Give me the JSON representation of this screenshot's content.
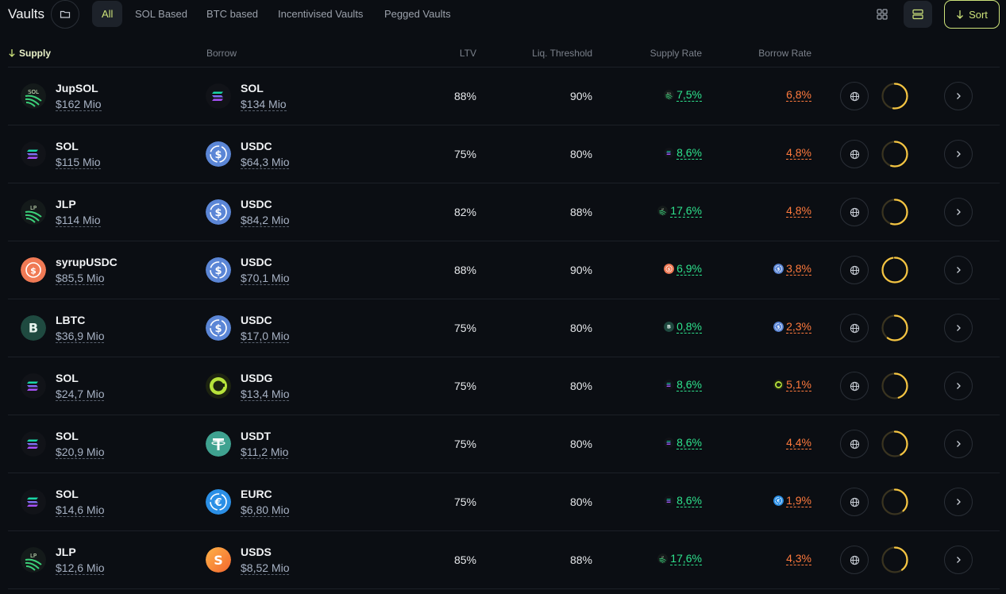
{
  "header": {
    "title": "Vaults",
    "tabs": [
      {
        "label": "All",
        "active": true
      },
      {
        "label": "SOL Based",
        "active": false
      },
      {
        "label": "BTC based",
        "active": false
      },
      {
        "label": "Incentivised Vaults",
        "active": false
      },
      {
        "label": "Pegged Vaults",
        "active": false
      }
    ],
    "sort_label": "Sort"
  },
  "columns": {
    "supply": "Supply",
    "borrow": "Borrow",
    "ltv": "LTV",
    "liq": "Liq. Threshold",
    "supply_rate": "Supply Rate",
    "borrow_rate": "Borrow Rate"
  },
  "colors": {
    "accent": "#cde37a",
    "supply_rate": "#2ee28d",
    "borrow_rate": "#ff7a3d",
    "gauge": "#f5c542"
  },
  "rows": [
    {
      "supply": {
        "name": "JupSOL",
        "amount": "$162 Mio",
        "icon": "jupsol"
      },
      "borrow": {
        "name": "SOL",
        "amount": "$134 Mio",
        "icon": "sol"
      },
      "ltv": "88%",
      "liq": "90%",
      "supply_rate": {
        "value": "7,5%",
        "icon": "jupsol"
      },
      "borrow_rate": {
        "value": "6,8%",
        "icon": ""
      },
      "utilization": 0.52
    },
    {
      "supply": {
        "name": "SOL",
        "amount": "$115 Mio",
        "icon": "sol"
      },
      "borrow": {
        "name": "USDC",
        "amount": "$64,3 Mio",
        "icon": "usdc"
      },
      "ltv": "75%",
      "liq": "80%",
      "supply_rate": {
        "value": "8,6%",
        "icon": "sol"
      },
      "borrow_rate": {
        "value": "4,8%",
        "icon": ""
      },
      "utilization": 0.55
    },
    {
      "supply": {
        "name": "JLP",
        "amount": "$114 Mio",
        "icon": "jlp"
      },
      "borrow": {
        "name": "USDC",
        "amount": "$84,2 Mio",
        "icon": "usdc"
      },
      "ltv": "82%",
      "liq": "88%",
      "supply_rate": {
        "value": "17,6%",
        "icon": "jlp"
      },
      "borrow_rate": {
        "value": "4,8%",
        "icon": ""
      },
      "utilization": 0.55
    },
    {
      "supply": {
        "name": "syrupUSDC",
        "amount": "$85,5 Mio",
        "icon": "syrup"
      },
      "borrow": {
        "name": "USDC",
        "amount": "$70,1 Mio",
        "icon": "usdc"
      },
      "ltv": "88%",
      "liq": "90%",
      "supply_rate": {
        "value": "6,9%",
        "icon": "syrup"
      },
      "borrow_rate": {
        "value": "3,8%",
        "icon": "usdc"
      },
      "utilization": 0.97
    },
    {
      "supply": {
        "name": "LBTC",
        "amount": "$36,9 Mio",
        "icon": "lbtc"
      },
      "borrow": {
        "name": "USDC",
        "amount": "$17,0 Mio",
        "icon": "usdc"
      },
      "ltv": "75%",
      "liq": "80%",
      "supply_rate": {
        "value": "0,8%",
        "icon": "lbtc"
      },
      "borrow_rate": {
        "value": "2,3%",
        "icon": "usdc"
      },
      "utilization": 0.6
    },
    {
      "supply": {
        "name": "SOL",
        "amount": "$24,7 Mio",
        "icon": "sol"
      },
      "borrow": {
        "name": "USDG",
        "amount": "$13,4 Mio",
        "icon": "usdg"
      },
      "ltv": "75%",
      "liq": "80%",
      "supply_rate": {
        "value": "8,6%",
        "icon": "sol"
      },
      "borrow_rate": {
        "value": "5,1%",
        "icon": "usdg"
      },
      "utilization": 0.45
    },
    {
      "supply": {
        "name": "SOL",
        "amount": "$20,9 Mio",
        "icon": "sol"
      },
      "borrow": {
        "name": "USDT",
        "amount": "$11,2 Mio",
        "icon": "usdt"
      },
      "ltv": "75%",
      "liq": "80%",
      "supply_rate": {
        "value": "8,6%",
        "icon": "sol"
      },
      "borrow_rate": {
        "value": "4,4%",
        "icon": ""
      },
      "utilization": 0.42
    },
    {
      "supply": {
        "name": "SOL",
        "amount": "$14,6 Mio",
        "icon": "sol"
      },
      "borrow": {
        "name": "EURC",
        "amount": "$6,80 Mio",
        "icon": "eurc"
      },
      "ltv": "75%",
      "liq": "80%",
      "supply_rate": {
        "value": "8,6%",
        "icon": "sol"
      },
      "borrow_rate": {
        "value": "1,9%",
        "icon": "eurc"
      },
      "utilization": 0.38
    },
    {
      "supply": {
        "name": "JLP",
        "amount": "$12,6 Mio",
        "icon": "jlp"
      },
      "borrow": {
        "name": "USDS",
        "amount": "$8,52 Mio",
        "icon": "usds"
      },
      "ltv": "85%",
      "liq": "88%",
      "supply_rate": {
        "value": "17,6%",
        "icon": "jlp"
      },
      "borrow_rate": {
        "value": "4,3%",
        "icon": ""
      },
      "utilization": 0.4
    }
  ]
}
